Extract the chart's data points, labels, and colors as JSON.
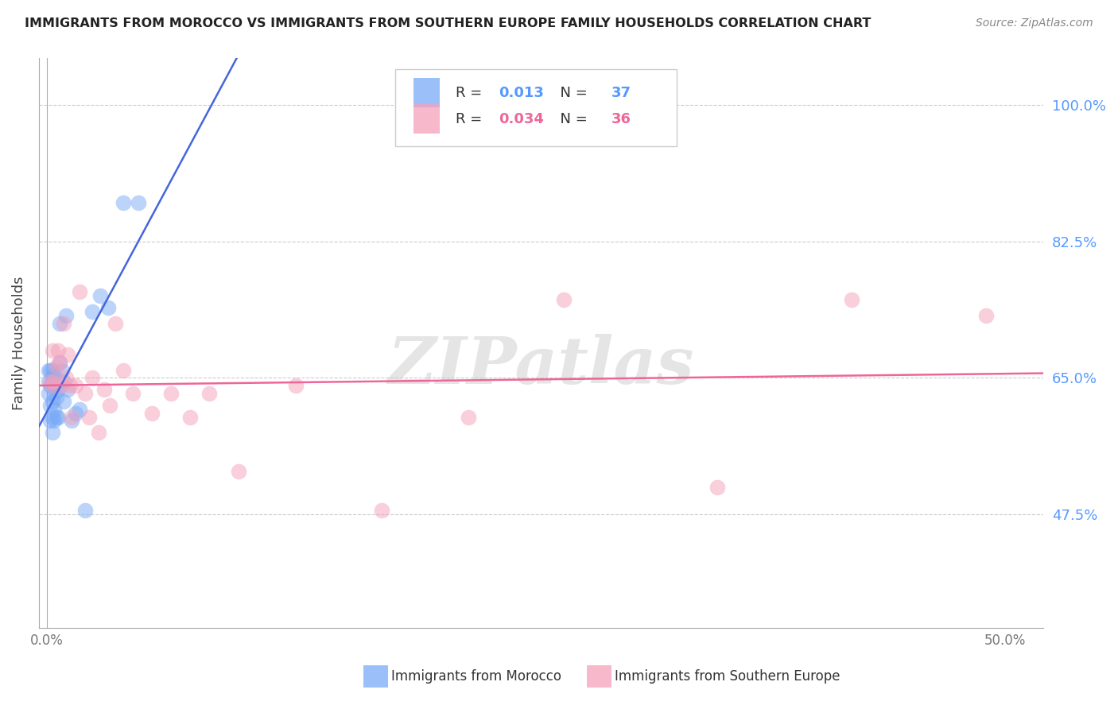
{
  "title": "IMMIGRANTS FROM MOROCCO VS IMMIGRANTS FROM SOUTHERN EUROPE FAMILY HOUSEHOLDS CORRELATION CHART",
  "source": "Source: ZipAtlas.com",
  "ylabel": "Family Households",
  "yticks": [
    0.475,
    0.65,
    0.825,
    1.0
  ],
  "ytick_labels": [
    "47.5%",
    "65.0%",
    "82.5%",
    "100.0%"
  ],
  "ymin": 0.33,
  "ymax": 1.06,
  "xmin": -0.004,
  "xmax": 0.52,
  "watermark": "ZIPatlas",
  "legend_R1": "0.013",
  "legend_N1": "37",
  "legend_R2": "0.034",
  "legend_N2": "36",
  "blue_color": "#7aabf7",
  "pink_color": "#f5a0bb",
  "blue_line_color": "#4466dd",
  "pink_line_color": "#ee6699",
  "series": [
    {
      "name": "Immigrants from Morocco",
      "x": [
        0.001,
        0.001,
        0.001,
        0.002,
        0.002,
        0.002,
        0.002,
        0.003,
        0.003,
        0.003,
        0.003,
        0.003,
        0.003,
        0.004,
        0.004,
        0.004,
        0.004,
        0.005,
        0.005,
        0.006,
        0.006,
        0.007,
        0.007,
        0.008,
        0.009,
        0.009,
        0.01,
        0.011,
        0.013,
        0.015,
        0.017,
        0.02,
        0.024,
        0.028,
        0.032,
        0.04,
        0.048
      ],
      "y": [
        0.63,
        0.645,
        0.66,
        0.595,
        0.615,
        0.64,
        0.66,
        0.58,
        0.6,
        0.62,
        0.64,
        0.65,
        0.66,
        0.595,
        0.61,
        0.63,
        0.655,
        0.6,
        0.625,
        0.6,
        0.635,
        0.67,
        0.72,
        0.66,
        0.62,
        0.645,
        0.73,
        0.635,
        0.595,
        0.605,
        0.61,
        0.48,
        0.735,
        0.755,
        0.74,
        0.875,
        0.875
      ]
    },
    {
      "name": "Immigrants from Southern Europe",
      "x": [
        0.002,
        0.003,
        0.003,
        0.004,
        0.005,
        0.006,
        0.007,
        0.008,
        0.009,
        0.01,
        0.011,
        0.012,
        0.013,
        0.015,
        0.017,
        0.02,
        0.022,
        0.024,
        0.027,
        0.03,
        0.033,
        0.036,
        0.04,
        0.045,
        0.055,
        0.065,
        0.075,
        0.085,
        0.1,
        0.13,
        0.175,
        0.22,
        0.27,
        0.35,
        0.42,
        0.49
      ],
      "y": [
        0.645,
        0.64,
        0.685,
        0.645,
        0.665,
        0.685,
        0.67,
        0.64,
        0.72,
        0.65,
        0.68,
        0.64,
        0.6,
        0.64,
        0.76,
        0.63,
        0.6,
        0.65,
        0.58,
        0.635,
        0.615,
        0.72,
        0.66,
        0.63,
        0.605,
        0.63,
        0.6,
        0.63,
        0.53,
        0.64,
        0.48,
        0.6,
        0.75,
        0.51,
        0.75,
        0.73
      ]
    }
  ]
}
